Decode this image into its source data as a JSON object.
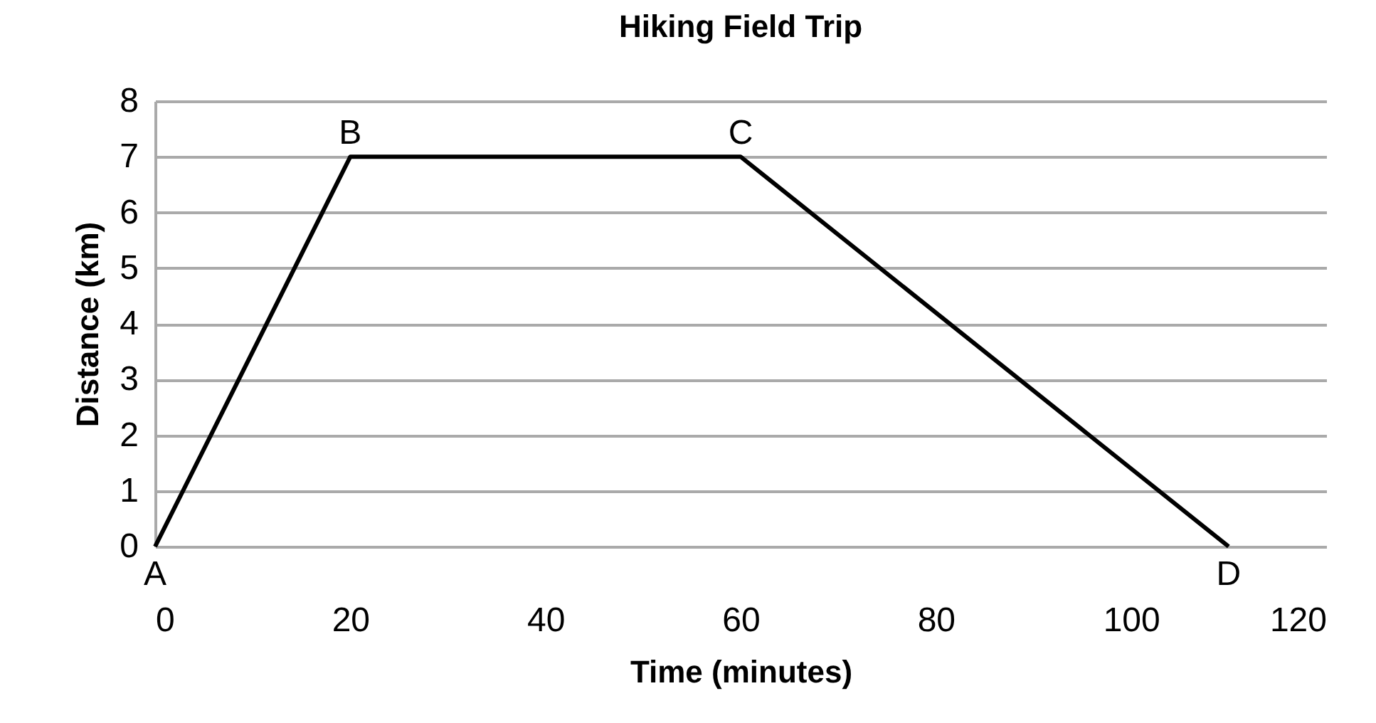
{
  "chart_data": {
    "type": "line",
    "title": "Hiking Field Trip",
    "xlabel": "Time (minutes)",
    "ylabel": "Distance (km)",
    "x": [
      0,
      20,
      60,
      110
    ],
    "series": [
      {
        "color": "#000000",
        "values": [
          0,
          7,
          7,
          0
        ]
      }
    ],
    "xlim": [
      0,
      120
    ],
    "xticks": [
      0,
      20,
      40,
      60,
      80,
      100,
      120
    ],
    "ylim": [
      0,
      8
    ],
    "yticks": [
      0,
      1,
      2,
      3,
      4,
      5,
      6,
      7,
      8
    ],
    "grid": "y",
    "marker": "none",
    "line_style": "solid",
    "annotations": [
      {
        "text": "A",
        "x": 0,
        "y": 0
      },
      {
        "text": "B",
        "x": 20,
        "y": 7
      },
      {
        "text": "C",
        "x": 60,
        "y": 7
      },
      {
        "text": "D",
        "x": 110,
        "y": 0
      }
    ]
  }
}
